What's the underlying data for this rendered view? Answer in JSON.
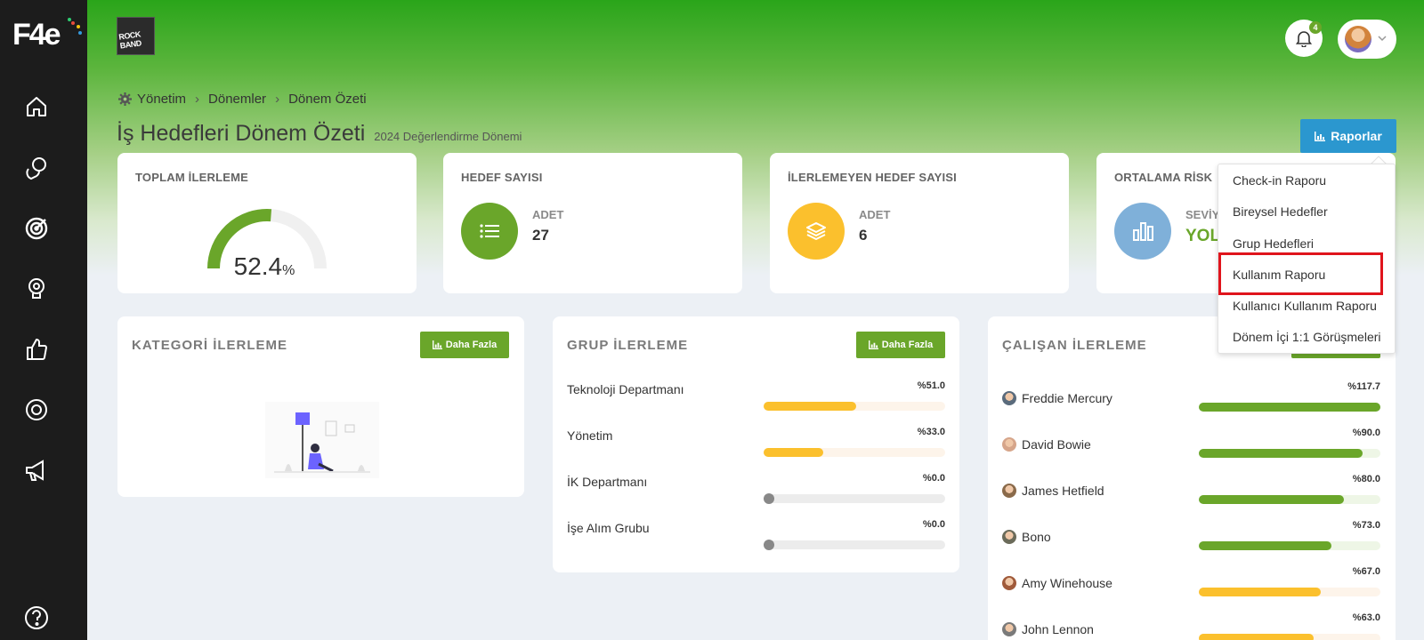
{
  "brand": {
    "logo_text": "F4e"
  },
  "header": {
    "band_logo_line1": "ROCK BAND",
    "band_logo_line2": "",
    "notification_count": "4"
  },
  "breadcrumb": [
    "Yönetim",
    "Dönemler",
    "Dönem Özeti"
  ],
  "page": {
    "title": "İş Hedefleri Dönem Özeti",
    "subtitle": "2024 Değerlendirme Dönemi",
    "reports_label": "Raporlar"
  },
  "stats": {
    "total_progress": {
      "title": "TOPLAM İLERLEME",
      "value": "52.4",
      "unit": "%",
      "fraction": 0.524
    },
    "target_count": {
      "title": "HEDEF SAYISI",
      "label": "ADET",
      "value": "27"
    },
    "stalled_count": {
      "title": "İLERLEMEYEN HEDEF SAYISI",
      "label": "ADET",
      "value": "6"
    },
    "avg_risk": {
      "title": "ORTALAMA RİSK",
      "label": "SEVİY",
      "value": "YOL"
    }
  },
  "category_panel": {
    "title": "KATEGORİ İLERLEME",
    "more_label": "Daha Fazla"
  },
  "group_panel": {
    "title": "GRUP İLERLEME",
    "more_label": "Daha Fazla",
    "rows": [
      {
        "name": "Teknoloji Departmanı",
        "pct": "%51.0",
        "value": 51.0
      },
      {
        "name": "Yönetim",
        "pct": "%33.0",
        "value": 33.0
      },
      {
        "name": "İK Departmanı",
        "pct": "%0.0",
        "value": 0.0
      },
      {
        "name": "İşe Alım Grubu",
        "pct": "%0.0",
        "value": 0.0
      }
    ]
  },
  "employee_panel": {
    "title": "ÇALIŞAN İLERLEME",
    "rows": [
      {
        "name": "Freddie Mercury",
        "pct": "%117.7",
        "value": 117.7
      },
      {
        "name": "David Bowie",
        "pct": "%90.0",
        "value": 90.0
      },
      {
        "name": "James Hetfield",
        "pct": "%80.0",
        "value": 80.0
      },
      {
        "name": "Bono",
        "pct": "%73.0",
        "value": 73.0
      },
      {
        "name": "Amy Winehouse",
        "pct": "%67.0",
        "value": 67.0
      },
      {
        "name": "John Lennon",
        "pct": "%63.0",
        "value": 63.0
      }
    ]
  },
  "reports_menu": {
    "items": [
      "Check-in Raporu",
      "Bireysel Hedefler",
      "Grup Hedefleri",
      "Kullanım Raporu",
      "Kullanıcı Kullanım Raporu",
      "Dönem İçi 1:1 Görüşmeleri"
    ],
    "highlighted": "Kullanım Raporu"
  },
  "colors": {
    "green": "#6aa62a",
    "yellow": "#fbc02d",
    "blue": "#2b97cf",
    "gray": "#888888",
    "highlight": "#e0141c"
  }
}
